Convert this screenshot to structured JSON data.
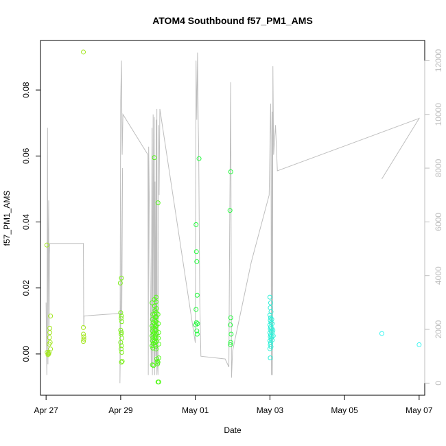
{
  "chart_data": {
    "type": "scatter",
    "title": "ATOM4 Southbound f57_PM1_AMS",
    "xlabel": "Date",
    "ylabel": "f57_PM1_AMS",
    "xlim": [
      26.85,
      37.15
    ],
    "ylim": [
      -0.0125,
      0.095
    ],
    "y2lim": [
      -450,
      12750
    ],
    "x_ticks": [
      {
        "value": 27,
        "label": "Apr 27"
      },
      {
        "value": 29,
        "label": "Apr 29"
      },
      {
        "value": 31,
        "label": "May 01"
      },
      {
        "value": 33,
        "label": "May 03"
      },
      {
        "value": 35,
        "label": "May 05"
      },
      {
        "value": 37,
        "label": "May 07"
      }
    ],
    "y_ticks": [
      {
        "value": 0.0,
        "label": "0.00"
      },
      {
        "value": 0.02,
        "label": "0.02"
      },
      {
        "value": 0.04,
        "label": "0.04"
      },
      {
        "value": 0.06,
        "label": "0.06"
      },
      {
        "value": 0.08,
        "label": "0.08"
      }
    ],
    "y2_ticks": [
      {
        "value": 0,
        "label": "0"
      },
      {
        "value": 2000,
        "label": "2000"
      },
      {
        "value": 4000,
        "label": "4000"
      },
      {
        "value": 6000,
        "label": "6000"
      },
      {
        "value": 8000,
        "label": "8000"
      },
      {
        "value": 10000,
        "label": "10000"
      },
      {
        "value": 12000,
        "label": "12000"
      }
    ],
    "series": [
      {
        "kind": "points",
        "axis": "left",
        "colors": [
          "#a2e61e",
          "#7cf01a",
          "#55f81c",
          "#22fa3c",
          "#2ef59a",
          "#2bf0d8",
          "#38f5f0"
        ],
        "points": [
          [
            27.02,
            0.033,
            "#a2e61e"
          ],
          [
            27.03,
            0.0005,
            "#a2e61e"
          ],
          [
            27.05,
            -0.0002,
            "#a2e61e"
          ],
          [
            27.06,
            0.0002,
            "#a2e61e"
          ],
          [
            27.07,
            0.0,
            "#a2e61e"
          ],
          [
            27.08,
            0.003,
            "#a2e61e"
          ],
          [
            27.09,
            0.005,
            "#a2e61e"
          ],
          [
            27.1,
            0.0065,
            "#a2e61e"
          ],
          [
            27.1,
            0.0078,
            "#a2e61e"
          ],
          [
            27.11,
            0.0035,
            "#a2e61e"
          ],
          [
            27.12,
            0.0115,
            "#a2e61e"
          ],
          [
            27.12,
            0.0015,
            "#a2e61e"
          ],
          [
            27.08,
            0.0005,
            "#a2e61e"
          ],
          [
            28.0,
            0.0915,
            "#a2e61e"
          ],
          [
            28.0,
            0.008,
            "#a2e61e"
          ],
          [
            28.0,
            0.006,
            "#a2e61e"
          ],
          [
            28.01,
            0.0052,
            "#a2e61e"
          ],
          [
            28.01,
            0.0045,
            "#a2e61e"
          ],
          [
            28.0,
            0.0038,
            "#a2e61e"
          ],
          [
            28.99,
            0.0215,
            "#7cf01a"
          ],
          [
            29.02,
            0.023,
            "#7cf01a"
          ],
          [
            29.0,
            0.0125,
            "#7cf01a"
          ],
          [
            29.02,
            0.0115,
            "#7cf01a"
          ],
          [
            29.01,
            0.0108,
            "#7cf01a"
          ],
          [
            29.03,
            0.0098,
            "#7cf01a"
          ],
          [
            29.0,
            0.0072,
            "#7cf01a"
          ],
          [
            29.02,
            0.0065,
            "#7cf01a"
          ],
          [
            29.01,
            0.006,
            "#7cf01a"
          ],
          [
            29.03,
            0.0048,
            "#7cf01a"
          ],
          [
            29.0,
            0.0035,
            "#7cf01a"
          ],
          [
            29.02,
            0.0025,
            "#7cf01a"
          ],
          [
            29.01,
            0.0015,
            "#7cf01a"
          ],
          [
            29.03,
            0.0005,
            "#7cf01a"
          ],
          [
            29.02,
            -0.0025,
            "#7cf01a"
          ],
          [
            29.04,
            -0.0022,
            "#7cf01a"
          ],
          [
            29.84,
            0.0155,
            "#55f81c"
          ],
          [
            29.86,
            0.012,
            "#55f81c"
          ],
          [
            29.85,
            0.0105,
            "#55f81c"
          ],
          [
            29.87,
            0.0095,
            "#55f81c"
          ],
          [
            29.84,
            0.0085,
            "#55f81c"
          ],
          [
            29.86,
            0.0078,
            "#55f81c"
          ],
          [
            29.85,
            0.007,
            "#55f81c"
          ],
          [
            29.87,
            0.0062,
            "#55f81c"
          ],
          [
            29.84,
            0.0055,
            "#55f81c"
          ],
          [
            29.86,
            0.0048,
            "#55f81c"
          ],
          [
            29.85,
            0.004,
            "#55f81c"
          ],
          [
            29.87,
            0.0032,
            "#55f81c"
          ],
          [
            29.84,
            0.0025,
            "#55f81c"
          ],
          [
            29.86,
            0.0018,
            "#55f81c"
          ],
          [
            29.85,
            -0.0033,
            "#55f81c"
          ],
          [
            29.88,
            -0.0035,
            "#55f81c"
          ],
          [
            29.9,
            0.0595,
            "#55f81c"
          ],
          [
            29.9,
            0.0165,
            "#55f81c"
          ],
          [
            29.91,
            0.0145,
            "#55f81c"
          ],
          [
            29.92,
            0.0132,
            "#55f81c"
          ],
          [
            29.91,
            0.012,
            "#55f81c"
          ],
          [
            29.93,
            0.0112,
            "#55f81c"
          ],
          [
            29.92,
            0.0104,
            "#55f81c"
          ],
          [
            29.94,
            0.0097,
            "#55f81c"
          ],
          [
            29.91,
            0.009,
            "#55f81c"
          ],
          [
            29.93,
            0.0083,
            "#55f81c"
          ],
          [
            29.92,
            0.0076,
            "#55f81c"
          ],
          [
            29.94,
            0.007,
            "#55f81c"
          ],
          [
            29.91,
            0.0064,
            "#55f81c"
          ],
          [
            29.93,
            0.0058,
            "#55f81c"
          ],
          [
            29.92,
            0.0052,
            "#55f81c"
          ],
          [
            29.94,
            0.0046,
            "#55f81c"
          ],
          [
            29.91,
            0.004,
            "#55f81c"
          ],
          [
            29.93,
            0.0034,
            "#55f81c"
          ],
          [
            29.92,
            0.0028,
            "#55f81c"
          ],
          [
            29.94,
            0.0022,
            "#55f81c"
          ],
          [
            29.95,
            0.0172,
            "#55f81c"
          ],
          [
            29.95,
            0.0158,
            "#55f81c"
          ],
          [
            29.96,
            0.0138,
            "#55f81c"
          ],
          [
            29.95,
            0.0125,
            "#55f81c"
          ],
          [
            29.96,
            0.0112,
            "#55f81c"
          ],
          [
            29.95,
            0.0098,
            "#55f81c"
          ],
          [
            29.96,
            0.0085,
            "#55f81c"
          ],
          [
            29.95,
            0.0072,
            "#55f81c"
          ],
          [
            29.96,
            0.0062,
            "#55f81c"
          ],
          [
            29.95,
            0.005,
            "#55f81c"
          ],
          [
            29.96,
            0.0038,
            "#55f81c"
          ],
          [
            29.95,
            0.0015,
            "#55f81c"
          ],
          [
            29.97,
            -0.0015,
            "#55f81c"
          ],
          [
            29.98,
            -0.0022,
            "#55f81c"
          ],
          [
            29.99,
            -0.003,
            "#55f81c"
          ],
          [
            30.0,
            -0.0025,
            "#55f81c"
          ],
          [
            30.0,
            0.0458,
            "#55f81c"
          ],
          [
            30.0,
            0.012,
            "#55f81c"
          ],
          [
            30.01,
            0.0092,
            "#55f81c"
          ],
          [
            30.02,
            0.0065,
            "#55f81c"
          ],
          [
            30.01,
            0.0048,
            "#55f81c"
          ],
          [
            30.02,
            0.003,
            "#55f81c"
          ],
          [
            30.02,
            -0.0012,
            "#55f81c"
          ],
          [
            30.0,
            -0.0085,
            "#55f81c"
          ],
          [
            30.02,
            -0.0085,
            "#55f81c"
          ],
          [
            31.02,
            0.0392,
            "#22fa3c"
          ],
          [
            31.03,
            0.031,
            "#22fa3c"
          ],
          [
            31.04,
            0.028,
            "#22fa3c"
          ],
          [
            31.05,
            0.0178,
            "#22fa3c"
          ],
          [
            31.02,
            0.0135,
            "#22fa3c"
          ],
          [
            31.03,
            0.0095,
            "#22fa3c"
          ],
          [
            31.01,
            0.0088,
            "#22fa3c"
          ],
          [
            31.06,
            0.0092,
            "#22fa3c"
          ],
          [
            31.04,
            0.007,
            "#22fa3c"
          ],
          [
            31.05,
            0.006,
            "#22fa3c"
          ],
          [
            31.1,
            0.0592,
            "#22fa3c"
          ],
          [
            31.95,
            0.0552,
            "#22fa3c"
          ],
          [
            31.93,
            0.0435,
            "#22fa3c"
          ],
          [
            31.95,
            0.011,
            "#22fa3c"
          ],
          [
            31.94,
            0.0088,
            "#22fa3c"
          ],
          [
            31.96,
            0.006,
            "#22fa3c"
          ],
          [
            31.95,
            0.0035,
            "#22fa3c"
          ],
          [
            31.94,
            0.0028,
            "#22fa3c"
          ],
          [
            33.0,
            0.0172,
            "#2bf0d8"
          ],
          [
            33.02,
            0.0155,
            "#2bf0d8"
          ],
          [
            33.01,
            0.014,
            "#2bf0d8"
          ],
          [
            33.03,
            0.0128,
            "#2bf0d8"
          ],
          [
            33.0,
            0.0118,
            "#2bf0d8"
          ],
          [
            33.02,
            0.011,
            "#2bf0d8"
          ],
          [
            33.01,
            0.0102,
            "#2bf0d8"
          ],
          [
            33.03,
            0.0095,
            "#2bf0d8"
          ],
          [
            33.0,
            0.0088,
            "#2bf0d8"
          ],
          [
            33.02,
            0.0082,
            "#2bf0d8"
          ],
          [
            33.01,
            0.0076,
            "#2bf0d8"
          ],
          [
            33.03,
            0.007,
            "#2bf0d8"
          ],
          [
            33.0,
            0.0064,
            "#2bf0d8"
          ],
          [
            33.02,
            0.0058,
            "#2bf0d8"
          ],
          [
            33.01,
            0.0052,
            "#2bf0d8"
          ],
          [
            33.03,
            0.0046,
            "#2bf0d8"
          ],
          [
            33.0,
            0.004,
            "#2bf0d8"
          ],
          [
            33.02,
            0.0034,
            "#2bf0d8"
          ],
          [
            33.01,
            0.0028,
            "#2bf0d8"
          ],
          [
            33.03,
            0.0022,
            "#2bf0d8"
          ],
          [
            33.0,
            0.0016,
            "#2bf0d8"
          ],
          [
            33.01,
            -0.0012,
            "#2bf0d8"
          ],
          [
            33.05,
            0.0105,
            "#2bf0d8"
          ],
          [
            33.06,
            0.0092,
            "#2bf0d8"
          ],
          [
            33.05,
            0.0078,
            "#2bf0d8"
          ],
          [
            33.06,
            0.0066,
            "#2bf0d8"
          ],
          [
            33.05,
            0.0054,
            "#2bf0d8"
          ],
          [
            33.06,
            0.0042,
            "#2bf0d8"
          ],
          [
            33.08,
            0.0072,
            "#2bf0d8"
          ],
          [
            33.09,
            0.0055,
            "#2bf0d8"
          ],
          [
            36.0,
            0.0062,
            "#38f5f0"
          ],
          [
            37.0,
            0.0028,
            "#38f5f0"
          ]
        ]
      },
      {
        "kind": "line",
        "axis": "right",
        "color": "#bebebe",
        "points": [
          [
            27.0,
            3000
          ],
          [
            27.02,
            300
          ],
          [
            27.03,
            5500
          ],
          [
            27.04,
            9500
          ],
          [
            27.05,
            700
          ],
          [
            27.06,
            5300
          ],
          [
            27.07,
            6800
          ],
          [
            27.08,
            2100
          ],
          [
            27.09,
            4800
          ],
          [
            27.1,
            5200
          ],
          [
            28.0,
            5200
          ],
          [
            28.0,
            5200
          ],
          [
            28.01,
            2100
          ],
          [
            28.02,
            2500
          ],
          [
            29.03,
            2600
          ],
          [
            29.05,
            8000
          ],
          [
            28.98,
            0.0
          ],
          [
            29.0,
            10500
          ],
          [
            29.02,
            12000
          ],
          [
            29.04,
            8500
          ],
          [
            29.06,
            10000
          ],
          [
            29.73,
            8500
          ],
          [
            29.74,
            300
          ],
          [
            29.75,
            8800
          ],
          [
            29.82,
            600
          ],
          [
            29.84,
            9500
          ],
          [
            29.85,
            300
          ],
          [
            29.87,
            10000
          ],
          [
            29.89,
            700
          ],
          [
            29.9,
            9900
          ],
          [
            29.91,
            300
          ],
          [
            29.92,
            7500
          ],
          [
            29.94,
            1000
          ],
          [
            29.95,
            9800
          ],
          [
            29.96,
            300
          ],
          [
            29.97,
            10200
          ],
          [
            29.98,
            800
          ],
          [
            30.0,
            300
          ],
          [
            30.02,
            9600
          ],
          [
            30.03,
            7000
          ],
          [
            30.05,
            10200
          ],
          [
            31.0,
            1500
          ],
          [
            31.02,
            12000
          ],
          [
            31.04,
            9800
          ],
          [
            31.06,
            12300
          ],
          [
            31.08,
            9500
          ],
          [
            31.09,
            8800
          ],
          [
            31.12,
            3000
          ],
          [
            31.15,
            1000
          ],
          [
            31.8,
            900
          ],
          [
            31.9,
            600
          ],
          [
            31.92,
            5400
          ],
          [
            31.95,
            11200
          ],
          [
            31.97,
            200
          ],
          [
            32.0,
            1200
          ],
          [
            32.5,
            4500
          ],
          [
            32.98,
            7000
          ],
          [
            33.02,
            10400
          ],
          [
            33.03,
            9200
          ],
          [
            33.04,
            300
          ],
          [
            33.05,
            4500
          ],
          [
            33.06,
            10100
          ],
          [
            33.07,
            300
          ],
          [
            33.08,
            11800
          ],
          [
            33.1,
            8500
          ],
          [
            33.15,
            9600
          ],
          [
            33.2,
            7900
          ],
          [
            37.0,
            9850
          ],
          [
            36.0,
            7600
          ]
        ]
      }
    ]
  }
}
